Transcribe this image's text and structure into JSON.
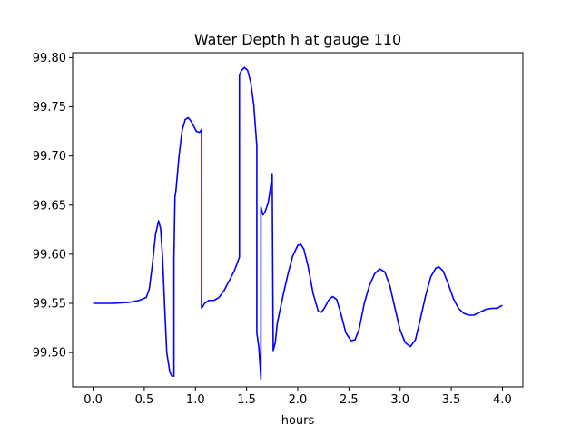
{
  "chart_data": {
    "type": "line",
    "title": "Water Depth h at gauge 110",
    "xlabel": "hours",
    "ylabel": "",
    "xlim": [
      -0.2,
      4.2
    ],
    "ylim": [
      99.465,
      99.805
    ],
    "xticks": [
      0.0,
      0.5,
      1.0,
      1.5,
      2.0,
      2.5,
      3.0,
      3.5,
      4.0
    ],
    "xtick_labels": [
      "0.0",
      "0.5",
      "1.0",
      "1.5",
      "2.0",
      "2.5",
      "3.0",
      "3.5",
      "4.0"
    ],
    "yticks": [
      99.5,
      99.55,
      99.6,
      99.65,
      99.7,
      99.75,
      99.8
    ],
    "ytick_labels": [
      "99.50",
      "99.55",
      "99.60",
      "99.65",
      "99.70",
      "99.75",
      "99.80"
    ],
    "grid": false,
    "series": [
      {
        "color": "#0000ff",
        "points": [
          [
            0.0,
            99.55
          ],
          [
            0.2,
            99.55
          ],
          [
            0.35,
            99.551
          ],
          [
            0.45,
            99.553
          ],
          [
            0.52,
            99.556
          ],
          [
            0.55,
            99.565
          ],
          [
            0.58,
            99.59
          ],
          [
            0.61,
            99.62
          ],
          [
            0.64,
            99.634
          ],
          [
            0.66,
            99.626
          ],
          [
            0.68,
            99.595
          ],
          [
            0.7,
            99.545
          ],
          [
            0.72,
            99.5
          ],
          [
            0.75,
            99.48
          ],
          [
            0.77,
            99.476
          ],
          [
            0.79,
            99.476
          ],
          [
            0.79,
            99.595
          ],
          [
            0.8,
            99.658
          ],
          [
            0.81,
            99.665
          ],
          [
            0.84,
            99.7
          ],
          [
            0.87,
            99.726
          ],
          [
            0.9,
            99.737
          ],
          [
            0.93,
            99.739
          ],
          [
            0.96,
            99.735
          ],
          [
            0.99,
            99.729
          ],
          [
            1.01,
            99.725
          ],
          [
            1.04,
            99.724
          ],
          [
            1.06,
            99.727
          ],
          [
            1.06,
            99.545
          ],
          [
            1.09,
            99.55
          ],
          [
            1.13,
            99.553
          ],
          [
            1.18,
            99.553
          ],
          [
            1.23,
            99.556
          ],
          [
            1.28,
            99.563
          ],
          [
            1.33,
            99.573
          ],
          [
            1.38,
            99.583
          ],
          [
            1.43,
            99.597
          ],
          [
            1.43,
            99.782
          ],
          [
            1.45,
            99.787
          ],
          [
            1.48,
            99.79
          ],
          [
            1.51,
            99.787
          ],
          [
            1.54,
            99.775
          ],
          [
            1.57,
            99.752
          ],
          [
            1.6,
            99.71
          ],
          [
            1.6,
            99.52
          ],
          [
            1.62,
            99.505
          ],
          [
            1.64,
            99.473
          ],
          [
            1.64,
            99.648
          ],
          [
            1.66,
            99.64
          ],
          [
            1.68,
            99.643
          ],
          [
            1.71,
            99.652
          ],
          [
            1.73,
            99.665
          ],
          [
            1.75,
            99.681
          ],
          [
            1.76,
            99.502
          ],
          [
            1.78,
            99.51
          ],
          [
            1.8,
            99.53
          ],
          [
            1.85,
            99.555
          ],
          [
            1.9,
            99.578
          ],
          [
            1.95,
            99.598
          ],
          [
            2.0,
            99.609
          ],
          [
            2.03,
            99.61
          ],
          [
            2.06,
            99.605
          ],
          [
            2.1,
            99.588
          ],
          [
            2.15,
            99.56
          ],
          [
            2.2,
            99.542
          ],
          [
            2.23,
            99.541
          ],
          [
            2.26,
            99.545
          ],
          [
            2.3,
            99.553
          ],
          [
            2.34,
            99.557
          ],
          [
            2.38,
            99.554
          ],
          [
            2.42,
            99.54
          ],
          [
            2.47,
            99.52
          ],
          [
            2.52,
            99.512
          ],
          [
            2.56,
            99.513
          ],
          [
            2.6,
            99.524
          ],
          [
            2.65,
            99.55
          ],
          [
            2.7,
            99.568
          ],
          [
            2.75,
            99.58
          ],
          [
            2.8,
            99.585
          ],
          [
            2.85,
            99.582
          ],
          [
            2.9,
            99.568
          ],
          [
            2.95,
            99.545
          ],
          [
            3.0,
            99.523
          ],
          [
            3.05,
            99.51
          ],
          [
            3.1,
            99.506
          ],
          [
            3.15,
            99.513
          ],
          [
            3.2,
            99.535
          ],
          [
            3.25,
            99.558
          ],
          [
            3.3,
            99.577
          ],
          [
            3.35,
            99.586
          ],
          [
            3.38,
            99.587
          ],
          [
            3.42,
            99.583
          ],
          [
            3.47,
            99.57
          ],
          [
            3.52,
            99.555
          ],
          [
            3.57,
            99.545
          ],
          [
            3.62,
            99.54
          ],
          [
            3.67,
            99.538
          ],
          [
            3.72,
            99.538
          ],
          [
            3.78,
            99.541
          ],
          [
            3.84,
            99.544
          ],
          [
            3.9,
            99.545
          ],
          [
            3.95,
            99.545
          ],
          [
            3.98,
            99.547
          ],
          [
            4.0,
            99.548
          ]
        ]
      }
    ]
  }
}
